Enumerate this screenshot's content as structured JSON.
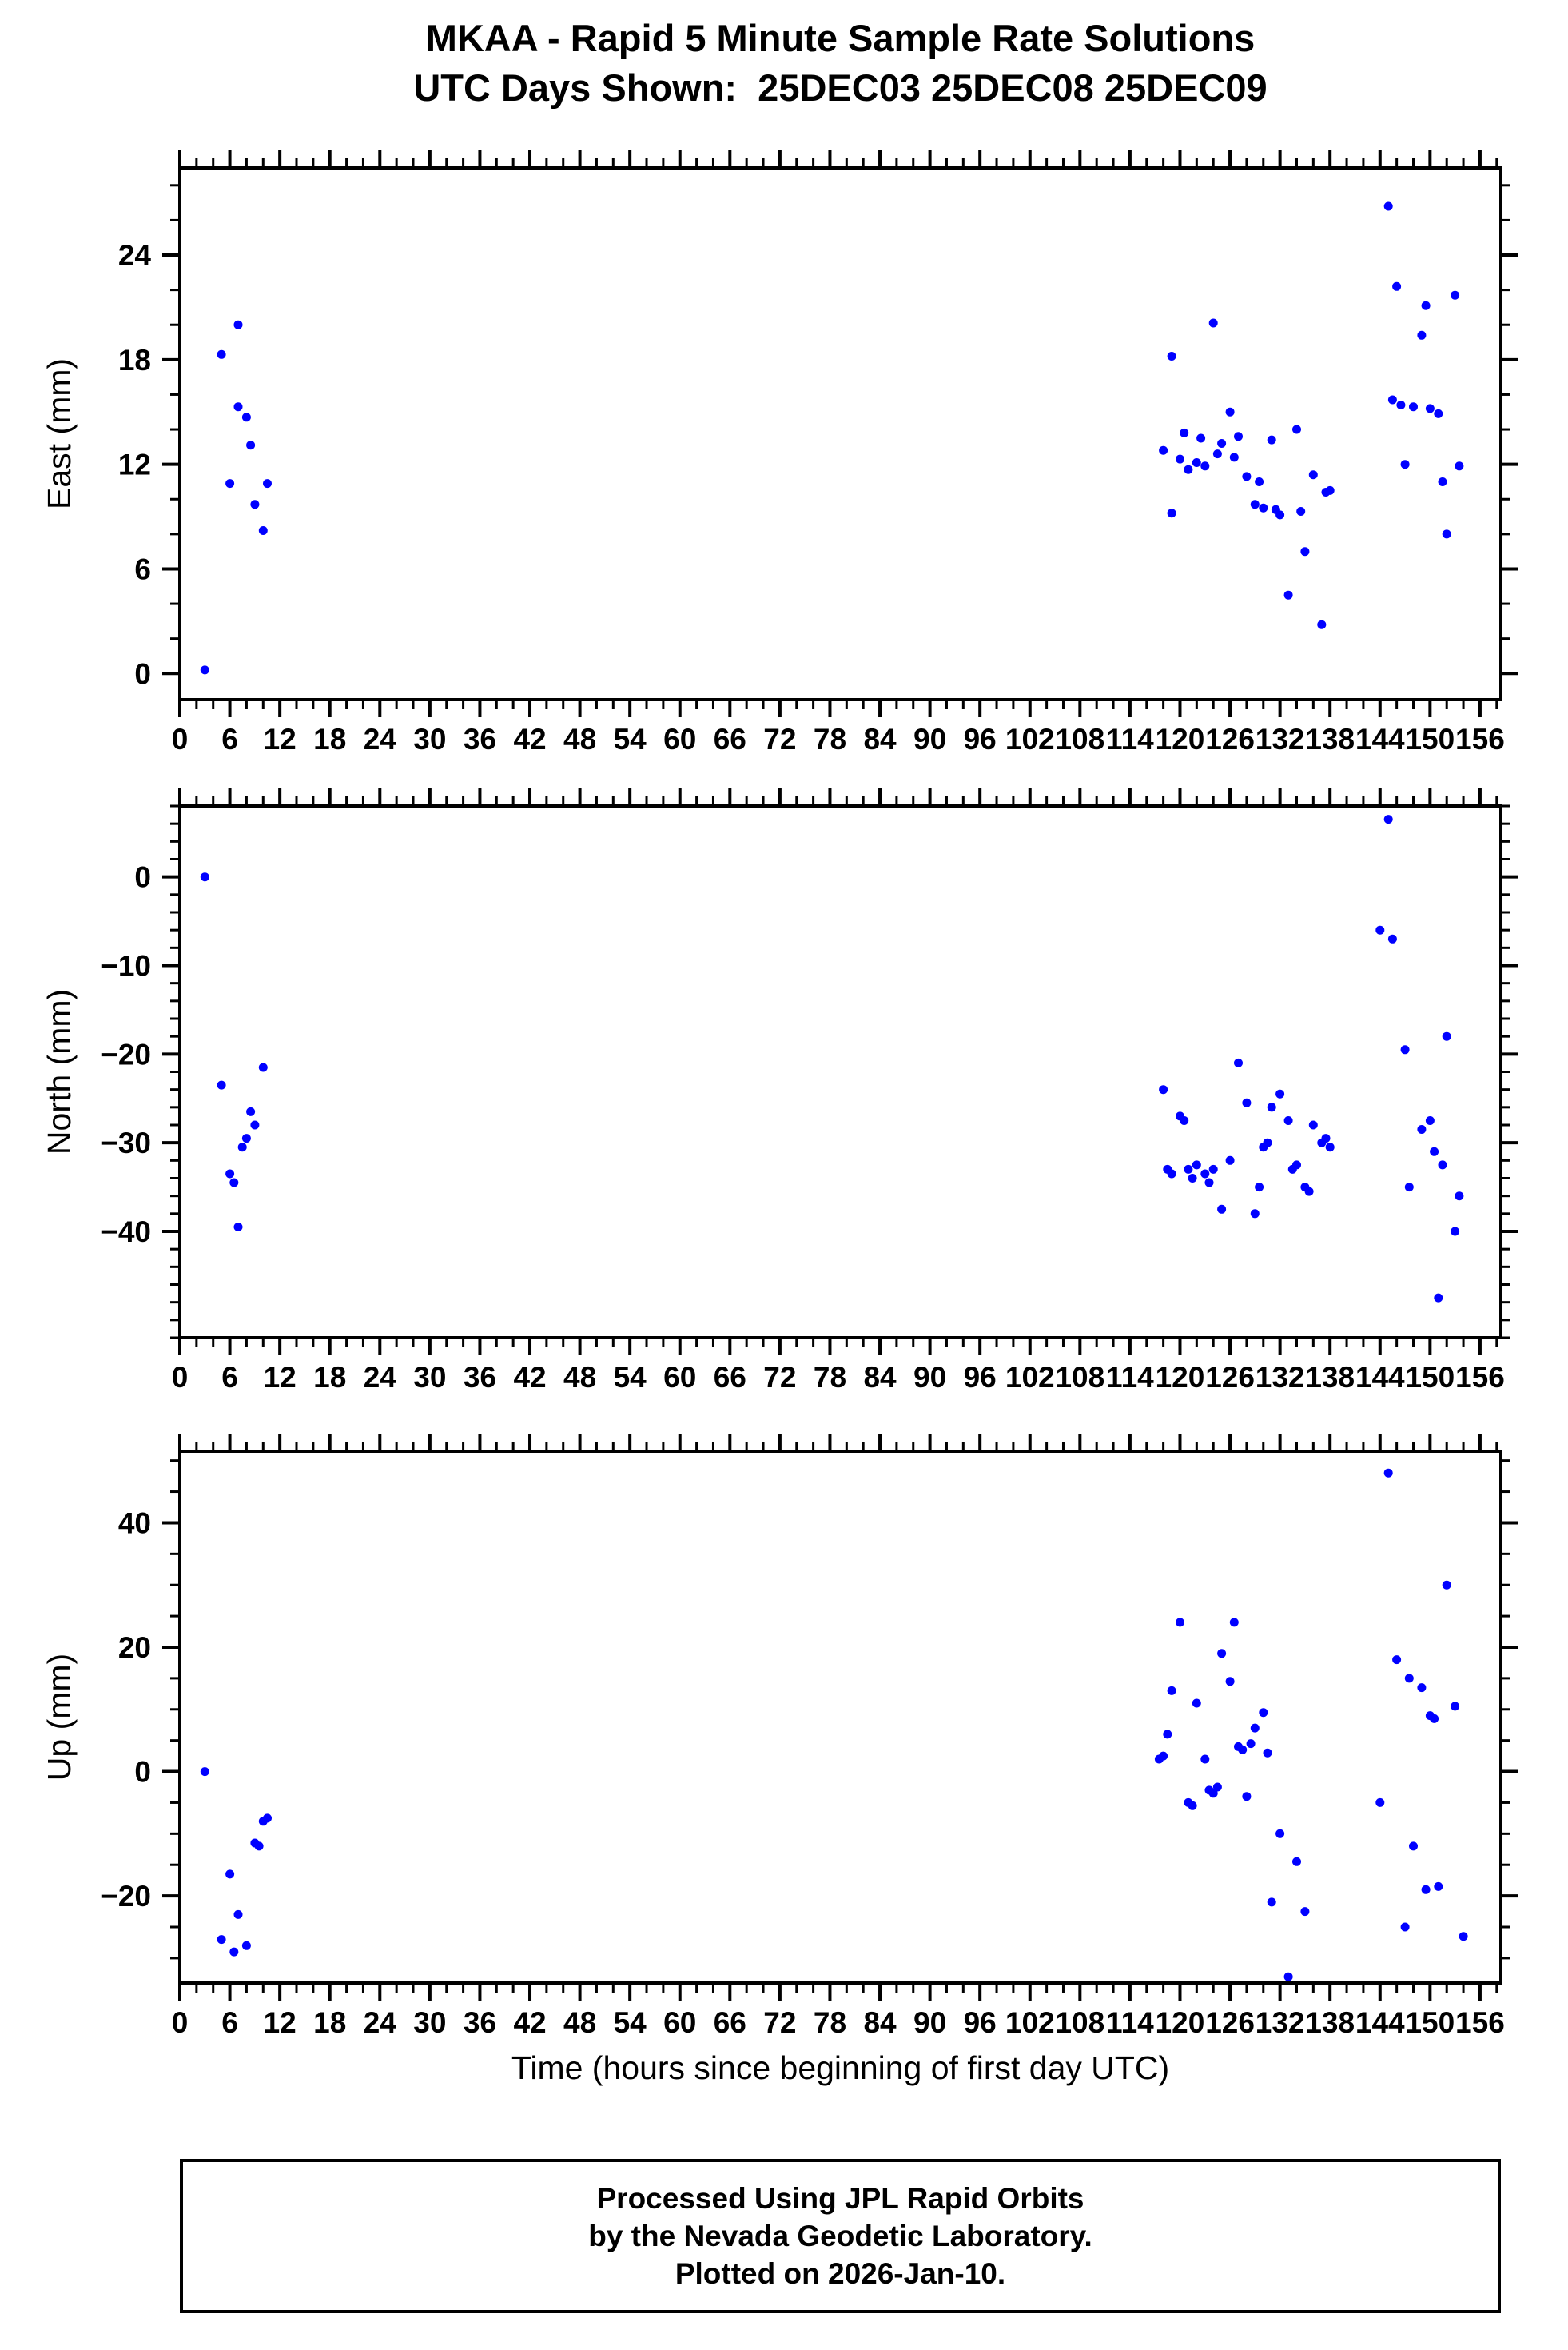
{
  "title": "MKAA - Rapid 5 Minute Sample Rate Solutions",
  "subtitle": "UTC Days Shown:  25DEC03 25DEC08 25DEC09",
  "footer": {
    "lines": [
      "Processed Using JPL Rapid Orbits",
      "by the Nevada Geodetic Laboratory.",
      "Plotted on 2026-Jan-10."
    ]
  },
  "colors": {
    "point": "#0000ff",
    "axis": "#000000",
    "text": "#000000"
  },
  "x_axis": {
    "label": "Time (hours since beginning of first day UTC)",
    "lim": [
      0,
      158.5
    ],
    "ticks": [
      0,
      6,
      12,
      18,
      24,
      30,
      36,
      42,
      48,
      54,
      60,
      66,
      72,
      78,
      84,
      90,
      96,
      102,
      108,
      114,
      120,
      126,
      132,
      138,
      144,
      150,
      156
    ],
    "major_step": 6,
    "minor_step": 2
  },
  "chart_data": [
    {
      "type": "scatter",
      "name": "east",
      "ylabel": "East (mm)",
      "ylim": [
        -1.5,
        29
      ],
      "yticks": [
        0,
        6,
        12,
        18,
        24
      ],
      "ytick_minor_step": 2,
      "show_xlabel": false,
      "points": [
        [
          3,
          0.2
        ],
        [
          5,
          18.3
        ],
        [
          6,
          10.9
        ],
        [
          7,
          20.0
        ],
        [
          7,
          15.3
        ],
        [
          8,
          14.7
        ],
        [
          8.5,
          13.1
        ],
        [
          9,
          9.7
        ],
        [
          10,
          8.2
        ],
        [
          10.5,
          10.9
        ],
        [
          118,
          12.8
        ],
        [
          119,
          18.2
        ],
        [
          119,
          9.2
        ],
        [
          120,
          12.3
        ],
        [
          120.5,
          13.8
        ],
        [
          121,
          11.7
        ],
        [
          122,
          12.1
        ],
        [
          122.5,
          13.5
        ],
        [
          123,
          11.9
        ],
        [
          124,
          20.1
        ],
        [
          124.5,
          12.6
        ],
        [
          125,
          13.2
        ],
        [
          126,
          15.0
        ],
        [
          126.5,
          12.4
        ],
        [
          127,
          13.6
        ],
        [
          128,
          11.3
        ],
        [
          129,
          9.7
        ],
        [
          129.5,
          11.0
        ],
        [
          130,
          9.5
        ],
        [
          131,
          13.4
        ],
        [
          131.5,
          9.4
        ],
        [
          132,
          9.1
        ],
        [
          133,
          4.5
        ],
        [
          134,
          14.0
        ],
        [
          134.5,
          9.3
        ],
        [
          135,
          7.0
        ],
        [
          136,
          11.4
        ],
        [
          137,
          2.8
        ],
        [
          137.5,
          10.4
        ],
        [
          138,
          10.5
        ],
        [
          145,
          26.8
        ],
        [
          145.5,
          15.7
        ],
        [
          146,
          22.2
        ],
        [
          146.5,
          15.4
        ],
        [
          147,
          12.0
        ],
        [
          148,
          15.3
        ],
        [
          149,
          19.4
        ],
        [
          149.5,
          21.1
        ],
        [
          150,
          15.2
        ],
        [
          151,
          14.9
        ],
        [
          151.5,
          11.0
        ],
        [
          152,
          8.0
        ],
        [
          153,
          21.7
        ],
        [
          153.5,
          11.9
        ]
      ]
    },
    {
      "type": "scatter",
      "name": "north",
      "ylabel": "North (mm)",
      "ylim": [
        -52,
        8
      ],
      "yticks": [
        0,
        -10,
        -20,
        -30,
        -40
      ],
      "ytick_minor_step": 2,
      "show_xlabel": false,
      "points": [
        [
          3,
          0.0
        ],
        [
          5,
          -23.5
        ],
        [
          6,
          -33.5
        ],
        [
          6.5,
          -34.5
        ],
        [
          7,
          -39.5
        ],
        [
          7.5,
          -30.5
        ],
        [
          8,
          -29.5
        ],
        [
          8.5,
          -26.5
        ],
        [
          9,
          -28.0
        ],
        [
          10,
          -21.5
        ],
        [
          118,
          -24.0
        ],
        [
          118.5,
          -33.0
        ],
        [
          119,
          -33.5
        ],
        [
          120,
          -27.0
        ],
        [
          120.5,
          -27.5
        ],
        [
          121,
          -33.0
        ],
        [
          121.5,
          -34.0
        ],
        [
          122,
          -32.5
        ],
        [
          123,
          -33.5
        ],
        [
          123.5,
          -34.5
        ],
        [
          124,
          -33.0
        ],
        [
          125,
          -37.5
        ],
        [
          126,
          -32.0
        ],
        [
          127,
          -21.0
        ],
        [
          128,
          -25.5
        ],
        [
          129,
          -38.0
        ],
        [
          129.5,
          -35.0
        ],
        [
          130,
          -30.5
        ],
        [
          130.5,
          -30.0
        ],
        [
          131,
          -26.0
        ],
        [
          132,
          -24.5
        ],
        [
          133,
          -27.5
        ],
        [
          133.5,
          -33.0
        ],
        [
          134,
          -32.5
        ],
        [
          135,
          -35.0
        ],
        [
          135.5,
          -35.5
        ],
        [
          136,
          -28.0
        ],
        [
          137,
          -30.0
        ],
        [
          137.5,
          -29.5
        ],
        [
          138,
          -30.5
        ],
        [
          144,
          -6.0
        ],
        [
          145,
          6.5
        ],
        [
          145.5,
          -7.0
        ],
        [
          147,
          -19.5
        ],
        [
          147.5,
          -35.0
        ],
        [
          149,
          -28.5
        ],
        [
          150,
          -27.5
        ],
        [
          150.5,
          -31.0
        ],
        [
          151,
          -47.5
        ],
        [
          151.5,
          -32.5
        ],
        [
          152,
          -18.0
        ],
        [
          153,
          -40.0
        ],
        [
          153.5,
          -36.0
        ]
      ]
    },
    {
      "type": "scatter",
      "name": "up",
      "ylabel": "Up (mm)",
      "ylim": [
        -34,
        51.5
      ],
      "yticks": [
        40,
        20,
        0,
        -20
      ],
      "ytick_minor_step": 5,
      "show_xlabel": true,
      "points": [
        [
          3,
          0.0
        ],
        [
          5,
          -27.0
        ],
        [
          6,
          -16.5
        ],
        [
          6.5,
          -29.0
        ],
        [
          7,
          -23.0
        ],
        [
          8,
          -28.0
        ],
        [
          9,
          -11.5
        ],
        [
          9.5,
          -12.0
        ],
        [
          10,
          -8.0
        ],
        [
          10.5,
          -7.5
        ],
        [
          117.5,
          2.0
        ],
        [
          118,
          2.5
        ],
        [
          118.5,
          6.0
        ],
        [
          119,
          13.0
        ],
        [
          120,
          24.0
        ],
        [
          121,
          -5.0
        ],
        [
          121.5,
          -5.5
        ],
        [
          122,
          11.0
        ],
        [
          123,
          2.0
        ],
        [
          123.5,
          -3.0
        ],
        [
          124,
          -3.5
        ],
        [
          124.5,
          -2.5
        ],
        [
          125,
          19.0
        ],
        [
          126,
          14.5
        ],
        [
          126.5,
          24.0
        ],
        [
          127,
          4.0
        ],
        [
          127.5,
          3.5
        ],
        [
          128,
          -4.0
        ],
        [
          128.5,
          4.5
        ],
        [
          129,
          7.0
        ],
        [
          130,
          9.5
        ],
        [
          130.5,
          3.0
        ],
        [
          131,
          -21.0
        ],
        [
          132,
          -10.0
        ],
        [
          133,
          -33.0
        ],
        [
          134,
          -14.5
        ],
        [
          135,
          -22.5
        ],
        [
          144,
          -5.0
        ],
        [
          145,
          48.0
        ],
        [
          146,
          18.0
        ],
        [
          147,
          -25.0
        ],
        [
          147.5,
          15.0
        ],
        [
          148,
          -12.0
        ],
        [
          149,
          13.5
        ],
        [
          149.5,
          -19.0
        ],
        [
          150,
          9.0
        ],
        [
          150.5,
          8.5
        ],
        [
          151,
          -18.5
        ],
        [
          152,
          30.0
        ],
        [
          153,
          10.5
        ],
        [
          154,
          -26.5
        ]
      ]
    }
  ]
}
